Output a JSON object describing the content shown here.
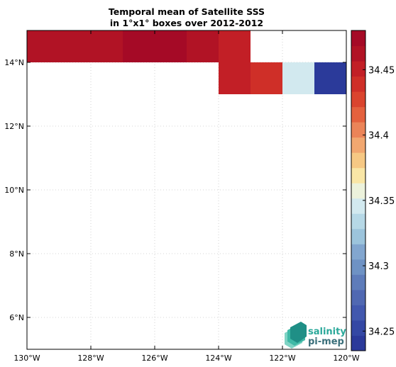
{
  "chart_data": {
    "type": "heatmap",
    "title_lines": [
      "Temporal mean of Satellite SSS",
      "in 1°x1° boxes over 2012-2012"
    ],
    "x_ticks": [
      {
        "value": -130,
        "label": "130°W"
      },
      {
        "value": -128,
        "label": "128°W"
      },
      {
        "value": -126,
        "label": "126°W"
      },
      {
        "value": -124,
        "label": "124°W"
      },
      {
        "value": -122,
        "label": "122°W"
      },
      {
        "value": -120,
        "label": "120°W"
      }
    ],
    "y_ticks": [
      {
        "value": 6,
        "label": "6°N"
      },
      {
        "value": 8,
        "label": "8°N"
      },
      {
        "value": 10,
        "label": "10°N"
      },
      {
        "value": 12,
        "label": "12°N"
      },
      {
        "value": 14,
        "label": "14°N"
      }
    ],
    "xlim": [
      -130,
      -120
    ],
    "ylim": [
      5,
      15
    ],
    "grid": true,
    "cells": [
      {
        "lon": -130,
        "lat": 14,
        "value": 34.46
      },
      {
        "lon": -129,
        "lat": 14,
        "value": 34.46
      },
      {
        "lon": -128,
        "lat": 14,
        "value": 34.46
      },
      {
        "lon": -127,
        "lat": 14,
        "value": 34.475
      },
      {
        "lon": -126,
        "lat": 14,
        "value": 34.475
      },
      {
        "lon": -125,
        "lat": 14,
        "value": 34.46
      },
      {
        "lon": -124,
        "lat": 14,
        "value": 34.45
      },
      {
        "lon": -124,
        "lat": 13,
        "value": 34.455
      },
      {
        "lon": -123,
        "lat": 13,
        "value": 34.437
      },
      {
        "lon": -122,
        "lat": 13,
        "value": 34.34
      },
      {
        "lon": -121,
        "lat": 13,
        "value": 34.24
      }
    ],
    "colorbar": {
      "min": 34.235,
      "max": 34.48,
      "ticks": [
        34.25,
        34.3,
        34.35,
        34.4,
        34.45
      ],
      "tick_labels": [
        "34.25",
        "34.3",
        "34.35",
        "34.4",
        "34.45"
      ],
      "colors": [
        "#2b3a9a",
        "#3448a4",
        "#4258ae",
        "#5068b2",
        "#5e7cba",
        "#6e92c4",
        "#82a6cf",
        "#9cc4dc",
        "#b6d8e6",
        "#d2e9ef",
        "#ecf2dc",
        "#f9e6a6",
        "#f6c884",
        "#f1a770",
        "#eb8458",
        "#e4613e",
        "#da442e",
        "#cf2f28",
        "#c21f26",
        "#b11325",
        "#a50a26"
      ]
    }
  },
  "logo": {
    "line1": "salinity",
    "line2": "pi-mep"
  }
}
